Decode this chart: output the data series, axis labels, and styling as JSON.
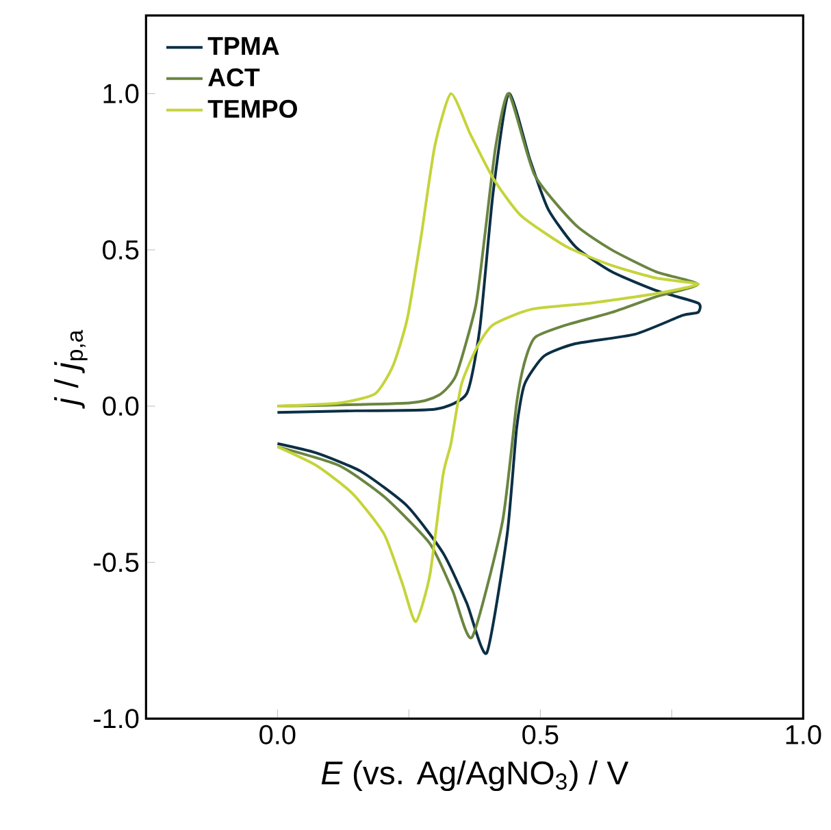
{
  "chart_data": {
    "type": "line",
    "xlabel": "*E* (vs. Ag/AgNO$_{3}$) / V",
    "ylabel": "*j* / *j*$_{p,a}$",
    "xlim": [
      -0.25,
      1.0
    ],
    "ylim": [
      -1.0,
      1.25
    ],
    "xticks": [
      {
        "value": -0.25,
        "label": null
      },
      {
        "value": 0,
        "label": "0.0"
      },
      {
        "value": 0.25,
        "label": null
      },
      {
        "value": 0.5,
        "label": "0.5"
      },
      {
        "value": 0.75,
        "label": null
      },
      {
        "value": 1,
        "label": "1.0"
      }
    ],
    "yticks": [
      {
        "value": -1,
        "label": "-1.0"
      },
      {
        "value": -0.5,
        "label": "-0.5"
      },
      {
        "value": 0,
        "label": "0.0"
      },
      {
        "value": 0.5,
        "label": "0.5"
      },
      {
        "value": 1,
        "label": "1.0"
      }
    ],
    "legend": "top left",
    "series": [
      {
        "name": "TPMA",
        "color": "#0b2f45",
        "x": [
          0,
          0.15,
          0.3,
          0.36,
          0.385,
          0.41,
          0.44,
          0.48,
          0.515,
          0.567,
          0.636,
          0.72,
          0.8,
          0.8,
          0.77,
          0.68,
          0.567,
          0.507,
          0.47,
          0.455,
          0.437,
          0.398,
          0.36,
          0.315,
          0.247,
          0.16,
          0.074,
          0
        ],
        "values": [
          -0.02,
          -0.015,
          -0.01,
          0.04,
          0.25,
          0.68,
          1.0,
          0.79,
          0.63,
          0.51,
          0.43,
          0.37,
          0.33,
          0.3,
          0.29,
          0.23,
          0.2,
          0.16,
          0.07,
          -0.07,
          -0.41,
          -0.79,
          -0.63,
          -0.47,
          -0.32,
          -0.21,
          -0.15,
          -0.12
        ]
      },
      {
        "name": "ACT",
        "color": "#6b8540",
        "x": [
          0,
          0.25,
          0.307,
          0.34,
          0.377,
          0.394,
          0.415,
          0.44,
          0.489,
          0.567,
          0.636,
          0.72,
          0.8,
          0.72,
          0.636,
          0.55,
          0.49,
          0.47,
          0.455,
          0.428,
          0.37,
          0.333,
          0.29,
          0.203,
          0.117,
          0
        ],
        "values": [
          0.0,
          0.01,
          0.035,
          0.1,
          0.32,
          0.54,
          0.83,
          1.0,
          0.74,
          0.58,
          0.5,
          0.43,
          0.39,
          0.35,
          0.3,
          0.26,
          0.22,
          0.14,
          0.01,
          -0.37,
          -0.74,
          -0.59,
          -0.44,
          -0.29,
          -0.19,
          -0.13
        ]
      },
      {
        "name": "TEMPO",
        "color": "#c5d43a",
        "x": [
          0,
          0.117,
          0.186,
          0.22,
          0.247,
          0.273,
          0.299,
          0.33,
          0.367,
          0.41,
          0.463,
          0.55,
          0.636,
          0.72,
          0.8,
          0.72,
          0.597,
          0.483,
          0.41,
          0.38,
          0.35,
          0.33,
          0.315,
          0.29,
          0.263,
          0.238,
          0.203,
          0.143,
          0.074,
          0
        ],
        "values": [
          0.0,
          0.01,
          0.04,
          0.13,
          0.28,
          0.54,
          0.83,
          1.0,
          0.87,
          0.73,
          0.61,
          0.51,
          0.45,
          0.41,
          0.39,
          0.36,
          0.33,
          0.31,
          0.26,
          0.19,
          0.07,
          -0.12,
          -0.22,
          -0.54,
          -0.69,
          -0.57,
          -0.41,
          -0.28,
          -0.19,
          -0.13
        ]
      }
    ]
  }
}
